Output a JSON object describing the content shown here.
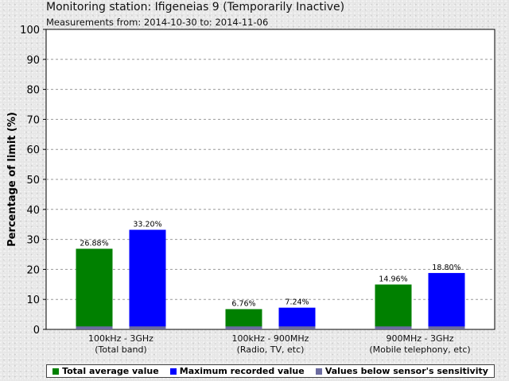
{
  "header": {
    "title": "Monitoring station: Ifigeneias 9 (Temporarily Inactive)",
    "subtitle": "Measurements from: 2014-10-30 to: 2014-11-06"
  },
  "chart_data": {
    "type": "bar",
    "ylabel": "Percentage of limit (%)",
    "ylim": [
      0,
      100
    ],
    "yticks": [
      0,
      10,
      20,
      30,
      40,
      50,
      60,
      70,
      80,
      90,
      100
    ],
    "grid": true,
    "categories": [
      {
        "line1": "100kHz - 3GHz",
        "line2": "(Total band)"
      },
      {
        "line1": "100kHz - 900MHz",
        "line2": "(Radio, TV, etc)"
      },
      {
        "line1": "900MHz - 3GHz",
        "line2": "(Mobile telephony, etc)"
      }
    ],
    "series": [
      {
        "name": "Total average value",
        "color": "#008000",
        "values": [
          26.88,
          6.76,
          14.96
        ],
        "labels": [
          "26.88%",
          "6.76%",
          "14.96%"
        ]
      },
      {
        "name": "Maximum recorded value",
        "color": "#0000ff",
        "values": [
          33.2,
          7.24,
          18.8
        ],
        "labels": [
          "33.20%",
          "7.24%",
          "18.80%"
        ]
      },
      {
        "name": "Values below sensor's sensitivity",
        "color": "#6c6ca0",
        "values": [
          1,
          1,
          1
        ],
        "labels": [
          "",
          "",
          ""
        ]
      }
    ],
    "legend_position": "bottom"
  }
}
